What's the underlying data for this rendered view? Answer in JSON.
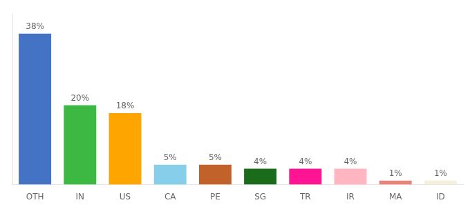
{
  "chart_data": {
    "type": "bar",
    "categories": [
      "OTH",
      "IN",
      "US",
      "CA",
      "PE",
      "SG",
      "TR",
      "IR",
      "MA",
      "ID"
    ],
    "values": [
      38,
      20,
      18,
      5,
      5,
      4,
      4,
      4,
      1,
      1
    ],
    "value_labels": [
      "38%",
      "20%",
      "18%",
      "5%",
      "5%",
      "4%",
      "4%",
      "4%",
      "1%",
      "1%"
    ],
    "colors": [
      "#4472C4",
      "#3CB843",
      "#FFA500",
      "#87CEEB",
      "#C0622A",
      "#1A6B1A",
      "#FF1493",
      "#FFB6C1",
      "#E8837A",
      "#F5F0DC"
    ],
    "ylim": [
      0,
      43
    ],
    "data_labels": true,
    "tick_labels": "x",
    "grid": false
  }
}
